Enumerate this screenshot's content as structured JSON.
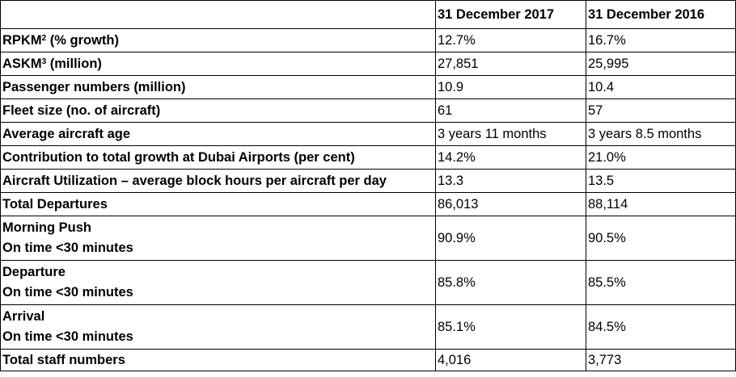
{
  "table": {
    "headers": [
      "",
      "31 December 2017",
      "31 December 2016"
    ],
    "rows": [
      {
        "label": "RPKM",
        "sup": "2",
        "label_suffix": " (% growth)",
        "v2017": "12.7%",
        "v2016": "16.7%"
      },
      {
        "label": "ASKM",
        "sup": "3",
        "label_suffix": " (million)",
        "v2017": "27,851",
        "v2016": "25,995"
      },
      {
        "label": "Passenger numbers (million)",
        "v2017": "10.9",
        "v2016": "10.4"
      },
      {
        "label": "Fleet size (no. of aircraft)",
        "v2017": "61",
        "v2016": "57"
      },
      {
        "label": "Average aircraft age",
        "v2017": "3 years 11 months",
        "v2016": "3 years 8.5 months"
      },
      {
        "label": "Contribution to total growth at Dubai Airports (per cent)",
        "v2017": "14.2%",
        "v2016": "21.0%"
      },
      {
        "label": "Aircraft Utilization – average block hours per aircraft per day",
        "v2017": "13.3",
        "v2016": "13.5"
      },
      {
        "label": "Total Departures",
        "v2017": "86,013",
        "v2016": "88,114"
      },
      {
        "label": "Morning Push",
        "label_line2": "On time <30 minutes",
        "v2017": "90.9%",
        "v2016": "90.5%"
      },
      {
        "label": "Departure",
        "label_line2": "On time <30 minutes",
        "v2017": "85.8%",
        "v2016": "85.5%"
      },
      {
        "label": "Arrival",
        "label_line2": "On time <30 minutes",
        "v2017": "85.1%",
        "v2016": "84.5%"
      },
      {
        "label": "Total staff numbers",
        "v2017": "4,016",
        "v2016": "3,773"
      }
    ]
  }
}
